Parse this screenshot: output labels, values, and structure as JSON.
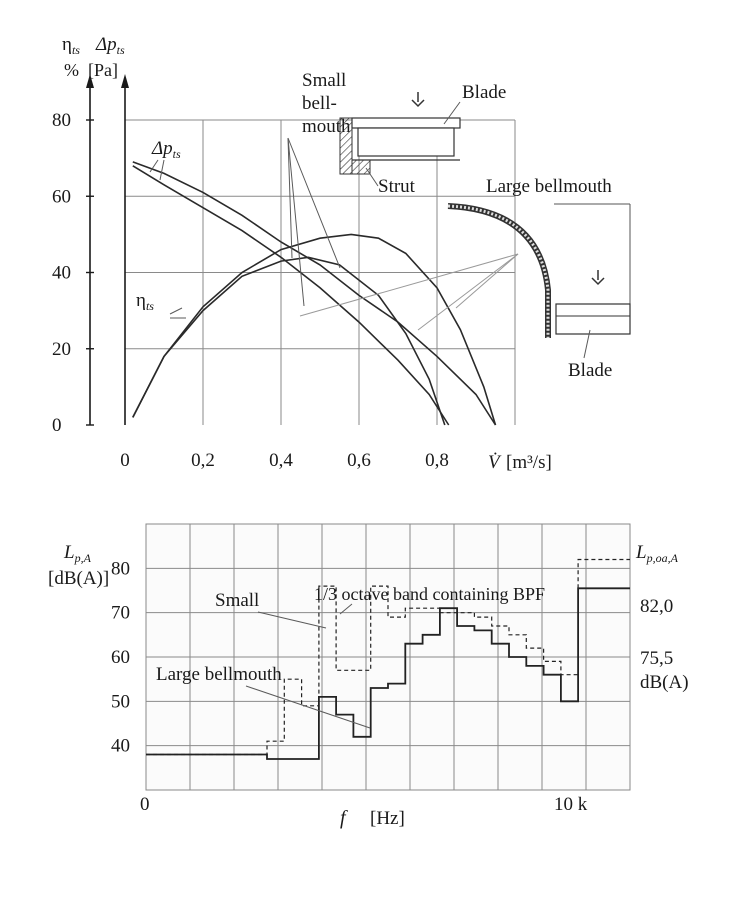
{
  "chart_data": [
    {
      "type": "line",
      "y_axis_left": {
        "label_top": "η",
        "label_sub": "ts",
        "label_unit": "%"
      },
      "y_axis_right": {
        "label_top": "Δp",
        "label_sub": "ts",
        "label_unit": "[Pa]"
      },
      "xlabel_symbol": "V̇",
      "xlabel_unit": "[m³/s]",
      "x_ticks": [
        "0",
        "0,2",
        "0,4",
        "0,6",
        "0,8"
      ],
      "y_ticks": [
        "0",
        "20",
        "40",
        "60",
        "80"
      ],
      "xlim": [
        0,
        1.0
      ],
      "ylim": [
        0,
        80
      ],
      "grid": true,
      "annotations": {
        "dp_label": "Δp",
        "dp_sub": "ts",
        "eta_label": "η",
        "eta_sub": "ts",
        "small_bellmouth": [
          "Small",
          "bell-",
          "mouth"
        ],
        "blade_top": "Blade",
        "strut": "Strut",
        "large_bellmouth": "Large bellmouth",
        "blade_bottom": "Blade"
      },
      "series": [
        {
          "name": "Δp_ts small bellmouth",
          "x": [
            0.02,
            0.1,
            0.2,
            0.3,
            0.4,
            0.5,
            0.6,
            0.7,
            0.78,
            0.83
          ],
          "y": [
            68,
            63,
            57,
            51,
            44,
            36,
            27,
            17,
            8,
            0
          ]
        },
        {
          "name": "Δp_ts large bellmouth",
          "x": [
            0.02,
            0.1,
            0.2,
            0.3,
            0.4,
            0.5,
            0.6,
            0.7,
            0.8,
            0.9,
            0.95
          ],
          "y": [
            69,
            66,
            61,
            55,
            48,
            42,
            34,
            27,
            18,
            8,
            0
          ]
        },
        {
          "name": "η_ts small bellmouth",
          "x": [
            0.02,
            0.1,
            0.2,
            0.3,
            0.4,
            0.47,
            0.55,
            0.65,
            0.72,
            0.78,
            0.82
          ],
          "y": [
            2,
            18,
            30,
            39,
            43,
            44,
            42,
            34,
            24,
            12,
            0
          ]
        },
        {
          "name": "η_ts large bellmouth",
          "x": [
            0.02,
            0.1,
            0.2,
            0.3,
            0.4,
            0.5,
            0.58,
            0.65,
            0.72,
            0.8,
            0.86,
            0.92,
            0.95
          ],
          "y": [
            2,
            18,
            31,
            40,
            46,
            49,
            50,
            49,
            45,
            36,
            25,
            10,
            0
          ]
        }
      ]
    },
    {
      "type": "line",
      "ylabel": "L",
      "ylabel_sub": "p,A",
      "ylabel_unit": "[dB(A)]",
      "right_label": "L",
      "right_label_sub": "p,oa,A",
      "right_values": [
        "82,0",
        "75,5",
        "dB(A)"
      ],
      "xlabel_symbol": "f",
      "xlabel_unit": "[Hz]",
      "x_ticks": [
        "0",
        "10 k"
      ],
      "y_ticks": [
        "40",
        "50",
        "60",
        "70",
        "80"
      ],
      "ylim": [
        30,
        90
      ],
      "grid": true,
      "annotations": {
        "small": "Small",
        "octave": "1/3 octave band containing BPF",
        "large": "Large bellmouth"
      },
      "bands": 24,
      "series": [
        {
          "name": "Small",
          "style": "dashed",
          "values": [
            38,
            38,
            38,
            38,
            38,
            38,
            38,
            41,
            55,
            49,
            76,
            57,
            57,
            76,
            69,
            71,
            71,
            70,
            70,
            69,
            67,
            65,
            62,
            59,
            56,
            82,
            82,
            82
          ]
        },
        {
          "name": "Large bellmouth",
          "style": "solid",
          "values": [
            38,
            38,
            38,
            38,
            38,
            38,
            38,
            37,
            37,
            37,
            51,
            47,
            42,
            53,
            54,
            63,
            65,
            71,
            67,
            66,
            63,
            60,
            58,
            56,
            50,
            75.5,
            75.5,
            75.5
          ]
        }
      ]
    }
  ]
}
